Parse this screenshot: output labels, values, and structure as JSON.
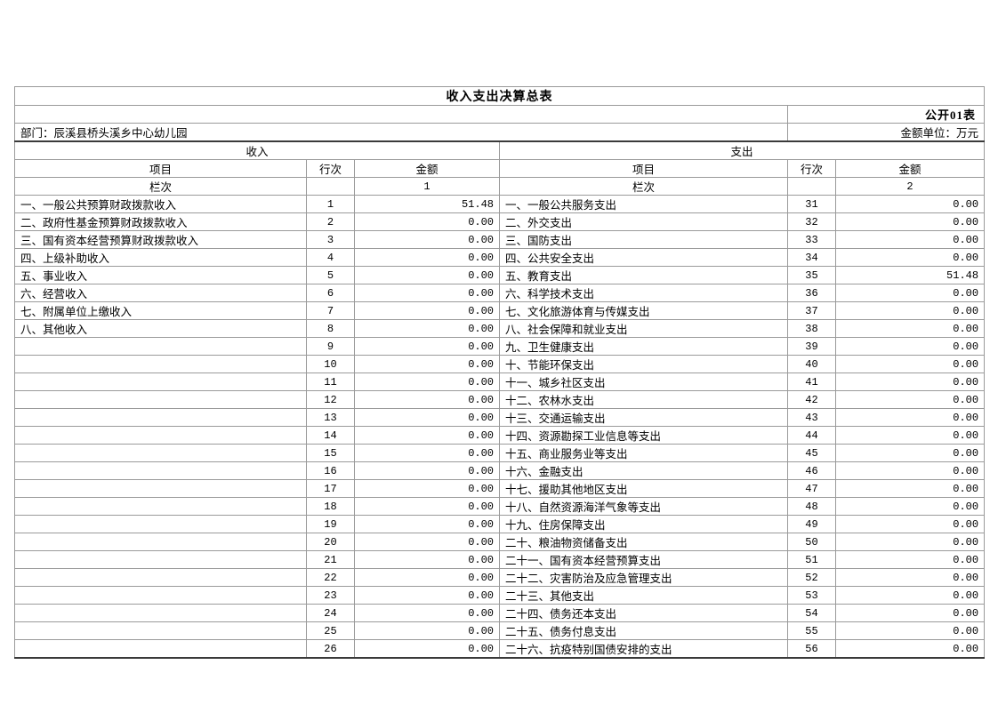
{
  "page": {
    "title": "收入支出决算总表",
    "sheet_label": "公开01表",
    "department": "部门：辰溪县桥头溪乡中心幼儿园",
    "unit_label": "金额单位：万元"
  },
  "table": {
    "income_header": "收入",
    "expense_header": "支出",
    "columns": {
      "item": "项目",
      "line_no": "行次",
      "amount": "金额"
    },
    "column_index_label": "栏次",
    "income_column_index": "1",
    "expense_column_index": "2",
    "income_rows": [
      {
        "item": "一、一般公共预算财政拨款收入",
        "line": "1",
        "amount": "51.48"
      },
      {
        "item": "二、政府性基金预算财政拨款收入",
        "line": "2",
        "amount": "0.00"
      },
      {
        "item": "三、国有资本经营预算财政拨款收入",
        "line": "3",
        "amount": "0.00"
      },
      {
        "item": "四、上级补助收入",
        "line": "4",
        "amount": "0.00"
      },
      {
        "item": "五、事业收入",
        "line": "5",
        "amount": "0.00"
      },
      {
        "item": "六、经营收入",
        "line": "6",
        "amount": "0.00"
      },
      {
        "item": "七、附属单位上缴收入",
        "line": "7",
        "amount": "0.00"
      },
      {
        "item": "八、其他收入",
        "line": "8",
        "amount": "0.00"
      },
      {
        "item": "",
        "line": "9",
        "amount": "0.00"
      },
      {
        "item": "",
        "line": "10",
        "amount": "0.00"
      },
      {
        "item": "",
        "line": "11",
        "amount": "0.00"
      },
      {
        "item": "",
        "line": "12",
        "amount": "0.00"
      },
      {
        "item": "",
        "line": "13",
        "amount": "0.00"
      },
      {
        "item": "",
        "line": "14",
        "amount": "0.00"
      },
      {
        "item": "",
        "line": "15",
        "amount": "0.00"
      },
      {
        "item": "",
        "line": "16",
        "amount": "0.00"
      },
      {
        "item": "",
        "line": "17",
        "amount": "0.00"
      },
      {
        "item": "",
        "line": "18",
        "amount": "0.00"
      },
      {
        "item": "",
        "line": "19",
        "amount": "0.00"
      },
      {
        "item": "",
        "line": "20",
        "amount": "0.00"
      },
      {
        "item": "",
        "line": "21",
        "amount": "0.00"
      },
      {
        "item": "",
        "line": "22",
        "amount": "0.00"
      },
      {
        "item": "",
        "line": "23",
        "amount": "0.00"
      },
      {
        "item": "",
        "line": "24",
        "amount": "0.00"
      },
      {
        "item": "",
        "line": "25",
        "amount": "0.00"
      },
      {
        "item": "",
        "line": "26",
        "amount": "0.00"
      }
    ],
    "expense_rows": [
      {
        "item": "一、一般公共服务支出",
        "line": "31",
        "amount": "0.00"
      },
      {
        "item": "二、外交支出",
        "line": "32",
        "amount": "0.00"
      },
      {
        "item": "三、国防支出",
        "line": "33",
        "amount": "0.00"
      },
      {
        "item": "四、公共安全支出",
        "line": "34",
        "amount": "0.00"
      },
      {
        "item": "五、教育支出",
        "line": "35",
        "amount": "51.48"
      },
      {
        "item": "六、科学技术支出",
        "line": "36",
        "amount": "0.00"
      },
      {
        "item": "七、文化旅游体育与传媒支出",
        "line": "37",
        "amount": "0.00"
      },
      {
        "item": "八、社会保障和就业支出",
        "line": "38",
        "amount": "0.00"
      },
      {
        "item": "九、卫生健康支出",
        "line": "39",
        "amount": "0.00"
      },
      {
        "item": "十、节能环保支出",
        "line": "40",
        "amount": "0.00"
      },
      {
        "item": "十一、城乡社区支出",
        "line": "41",
        "amount": "0.00"
      },
      {
        "item": "十二、农林水支出",
        "line": "42",
        "amount": "0.00"
      },
      {
        "item": "十三、交通运输支出",
        "line": "43",
        "amount": "0.00"
      },
      {
        "item": "十四、资源勘探工业信息等支出",
        "line": "44",
        "amount": "0.00"
      },
      {
        "item": "十五、商业服务业等支出",
        "line": "45",
        "amount": "0.00"
      },
      {
        "item": "十六、金融支出",
        "line": "46",
        "amount": "0.00"
      },
      {
        "item": "十七、援助其他地区支出",
        "line": "47",
        "amount": "0.00"
      },
      {
        "item": "十八、自然资源海洋气象等支出",
        "line": "48",
        "amount": "0.00"
      },
      {
        "item": "十九、住房保障支出",
        "line": "49",
        "amount": "0.00"
      },
      {
        "item": "二十、粮油物资储备支出",
        "line": "50",
        "amount": "0.00"
      },
      {
        "item": "二十一、国有资本经营预算支出",
        "line": "51",
        "amount": "0.00"
      },
      {
        "item": "二十二、灾害防治及应急管理支出",
        "line": "52",
        "amount": "0.00"
      },
      {
        "item": "二十三、其他支出",
        "line": "53",
        "amount": "0.00"
      },
      {
        "item": "二十四、债务还本支出",
        "line": "54",
        "amount": "0.00"
      },
      {
        "item": "二十五、债务付息支出",
        "line": "55",
        "amount": "0.00"
      },
      {
        "item": "二十六、抗疫特别国债安排的支出",
        "line": "56",
        "amount": "0.00"
      }
    ]
  }
}
